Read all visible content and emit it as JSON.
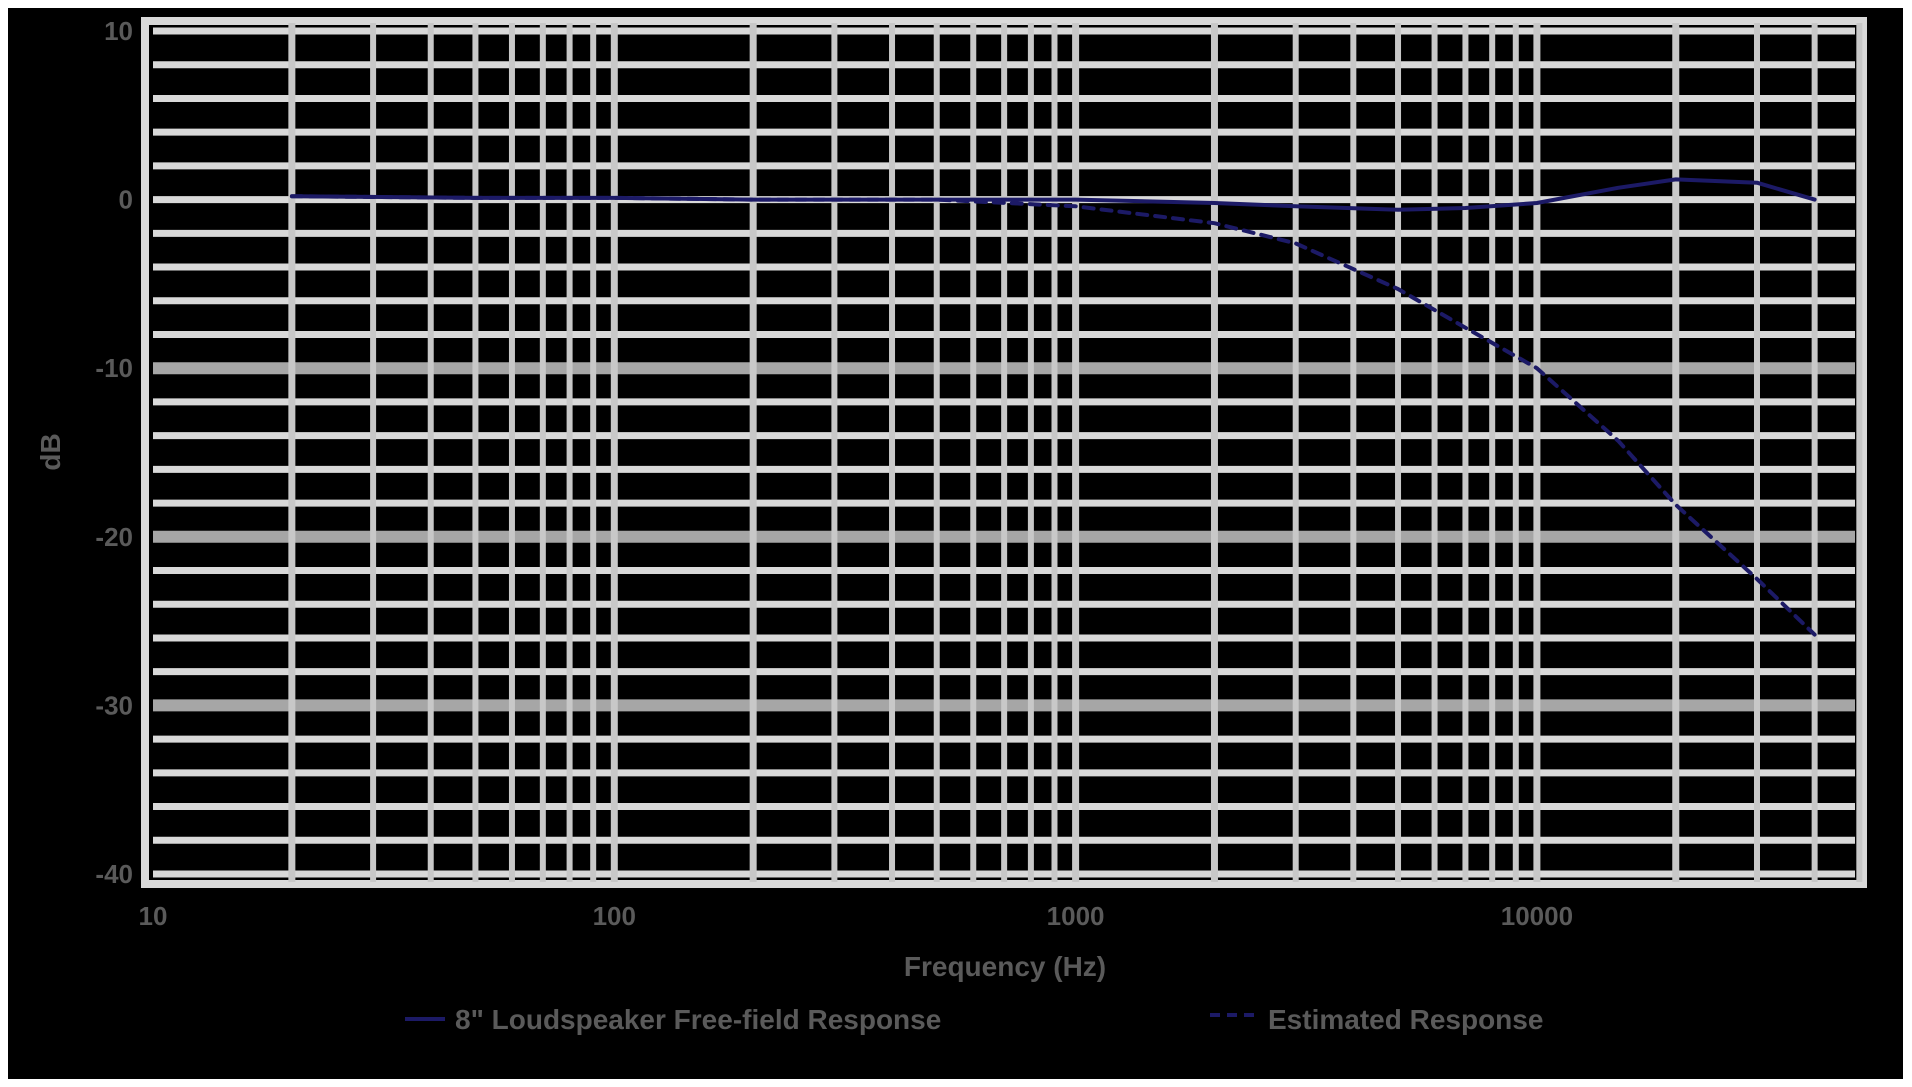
{
  "chart_data": {
    "type": "line",
    "title": "",
    "xlabel": "Frequency (Hz)",
    "ylabel": "dB",
    "xscale": "log",
    "xlim": [
      10,
      50000
    ],
    "ylim": [
      -40,
      10
    ],
    "grid": true,
    "legend_position": "bottom",
    "x_tick_labels": [
      "10",
      "100",
      "1000",
      "10000"
    ],
    "x_ticks": [
      10,
      100,
      1000,
      10000
    ],
    "y_tick_labels": [
      "10",
      "0",
      "-10",
      "-20",
      "-30",
      "-40"
    ],
    "y_ticks": [
      10,
      0,
      -10,
      -20,
      -30,
      -40
    ],
    "series": [
      {
        "name": "8\" Loudspeaker Free-field Response",
        "style": "solid",
        "color": "#1c1a66",
        "x": [
          20,
          50,
          100,
          200,
          500,
          1000,
          2000,
          3000,
          5000,
          7000,
          10000,
          15000,
          20000,
          30000,
          40000
        ],
        "y": [
          0.2,
          0.1,
          0.1,
          0.0,
          0.0,
          0.0,
          -0.2,
          -0.4,
          -0.6,
          -0.5,
          -0.2,
          0.7,
          1.2,
          1.0,
          0.0
        ]
      },
      {
        "name": "Estimated Response",
        "style": "dashed",
        "color": "#1c1a66",
        "x": [
          20,
          50,
          100,
          200,
          500,
          1000,
          2000,
          3000,
          5000,
          7000,
          10000,
          15000,
          20000,
          30000,
          40000
        ],
        "y": [
          0.2,
          0.1,
          0.1,
          0.0,
          0.0,
          -0.4,
          -1.4,
          -2.6,
          -5.3,
          -7.6,
          -10.0,
          -14.3,
          -18.1,
          -22.5,
          -25.8
        ]
      }
    ]
  },
  "legend": {
    "items": [
      {
        "label": "8\" Loudspeaker Free-field Response"
      },
      {
        "label": "Estimated Response"
      }
    ]
  },
  "axes": {
    "x_title": "Frequency (Hz)",
    "y_title": "dB"
  },
  "colors": {
    "background": "#000000",
    "grid_minor": "#d9d9d9",
    "grid_major": "#a6a6a6",
    "line": "#1c1a66",
    "text": "#5a5a5a"
  }
}
